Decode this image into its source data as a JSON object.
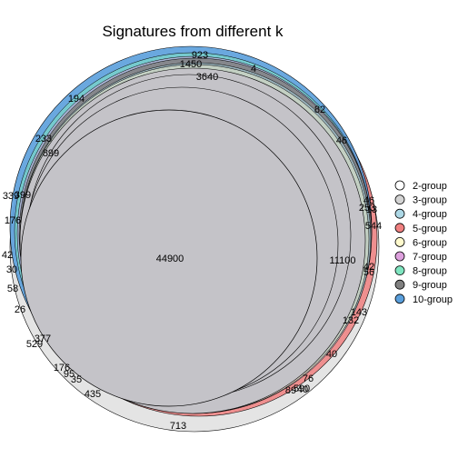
{
  "title": "Signatures from different k",
  "legend": [
    {
      "label": "2-group",
      "color": "#ffffff"
    },
    {
      "label": "3-group",
      "color": "#d3d3d3"
    },
    {
      "label": "4-group",
      "color": "#add8e6"
    },
    {
      "label": "5-group",
      "color": "#f08080"
    },
    {
      "label": "6-group",
      "color": "#fffacd"
    },
    {
      "label": "7-group",
      "color": "#dda0dd"
    },
    {
      "label": "8-group",
      "color": "#7fe5c0"
    },
    {
      "label": "9-group",
      "color": "#808080"
    },
    {
      "label": "10-group",
      "color": "#5a9fdc"
    }
  ],
  "region_labels": [
    "44900",
    "11100",
    "3640",
    "1450",
    "923",
    "4",
    "194",
    "82",
    "46",
    "233",
    "899",
    "339",
    "399",
    "176",
    "46",
    "253",
    "13",
    "544",
    "42",
    "30",
    "58",
    "26",
    "42",
    "56",
    "143",
    "132",
    "377",
    "529",
    "40",
    "176",
    "95",
    "35",
    "435",
    "76",
    "89",
    "590",
    "40",
    "713"
  ]
}
